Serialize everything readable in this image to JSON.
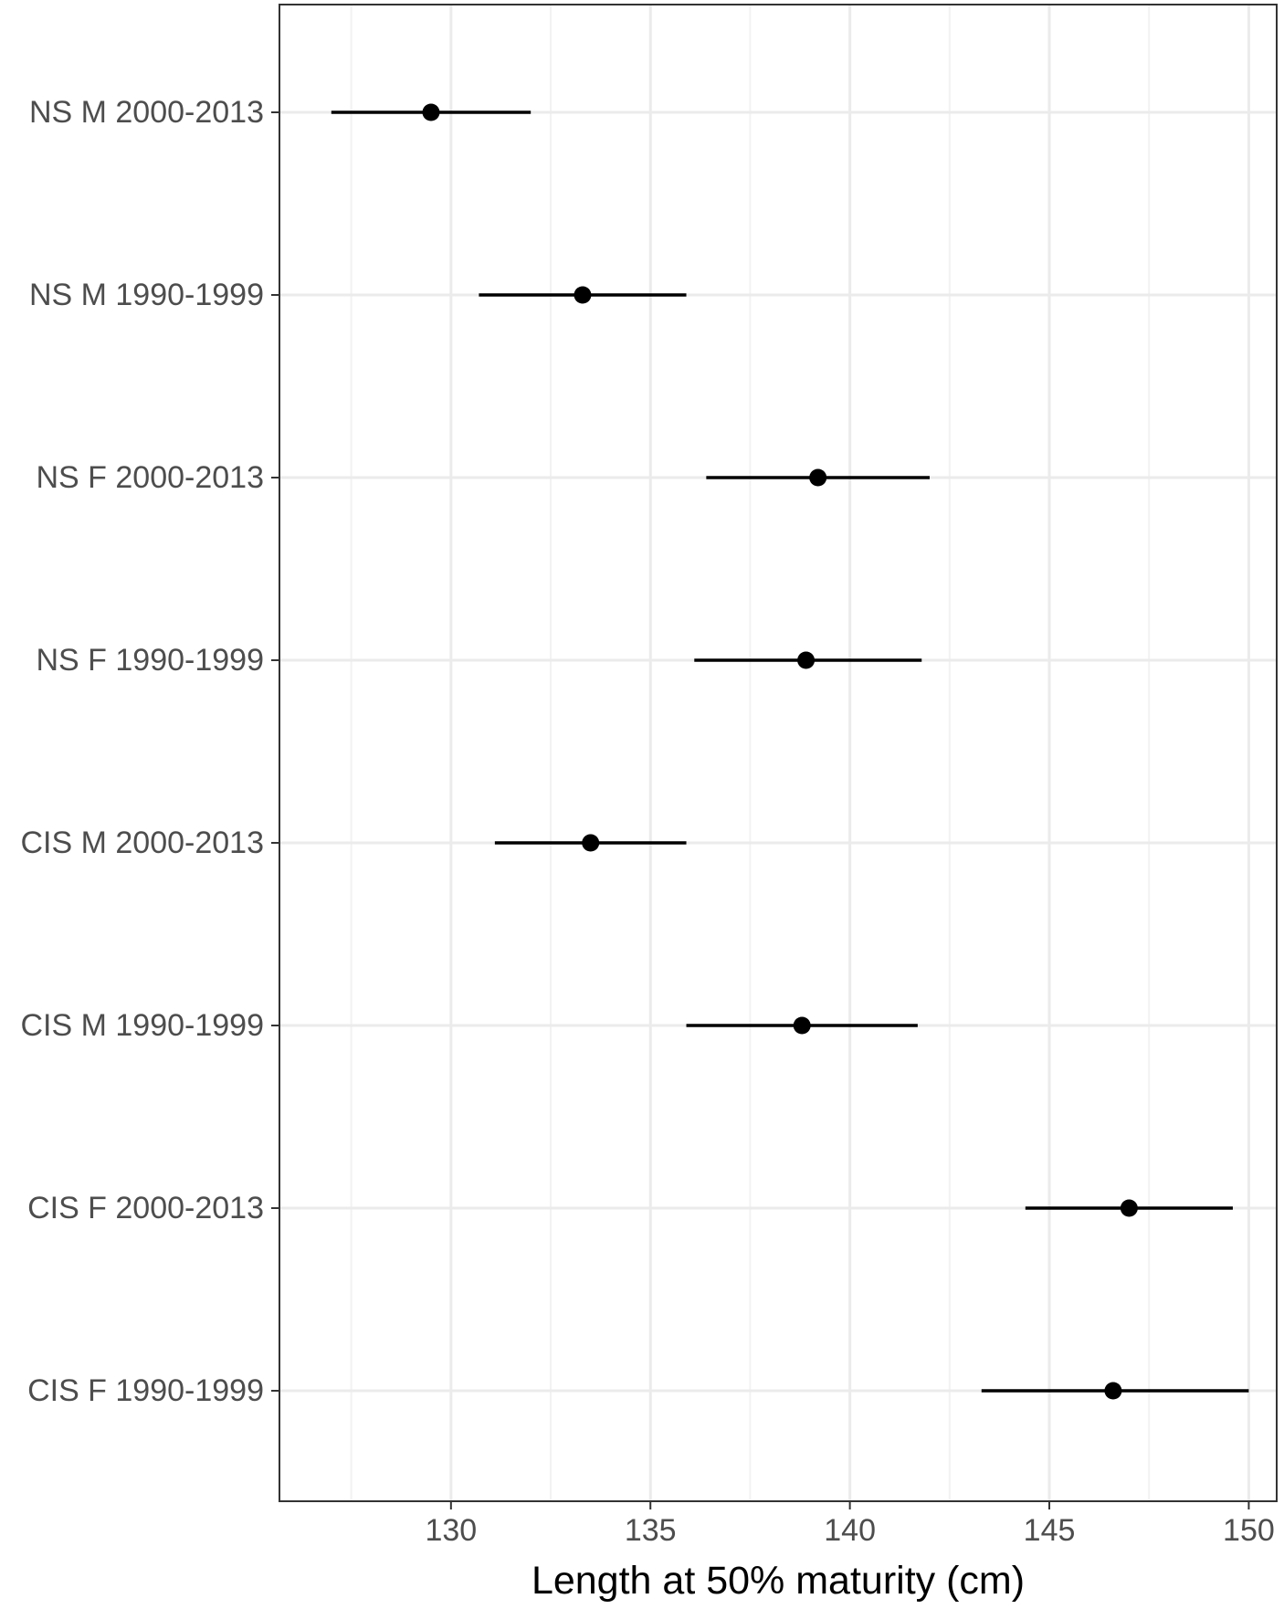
{
  "chart_data": {
    "type": "scatter",
    "subtype": "point-range",
    "title": "",
    "xlabel": "Length at 50% maturity (cm)",
    "ylabel": "",
    "xlim": [
      125.7,
      150.7
    ],
    "x_ticks": [
      130,
      135,
      140,
      145,
      150
    ],
    "x_minor_ticks": [
      127.5,
      132.5,
      137.5,
      142.5,
      147.5
    ],
    "grid": true,
    "legend": "none",
    "categories": [
      "NS M 2000-2013",
      "NS M 1990-1999",
      "NS F 2000-2013",
      "NS F 1990-1999",
      "CIS M 2000-2013",
      "CIS M 1990-1999",
      "CIS F 2000-2013",
      "CIS F 1990-1999"
    ],
    "series": [
      {
        "values": [
          129.5,
          133.3,
          139.2,
          138.9,
          133.5,
          138.8,
          147.0,
          146.6
        ],
        "lower": [
          127.0,
          130.7,
          136.4,
          136.1,
          131.1,
          135.9,
          144.4,
          143.3
        ],
        "upper": [
          132.0,
          135.9,
          142.0,
          141.8,
          135.9,
          141.7,
          149.6,
          150.0
        ]
      }
    ],
    "colors": {
      "point": "#000000",
      "panel_border": "#333333",
      "grid_major": "#ebebeb",
      "grid_minor": "#f2f2f2",
      "tick_text": "#4d4d4d"
    }
  }
}
